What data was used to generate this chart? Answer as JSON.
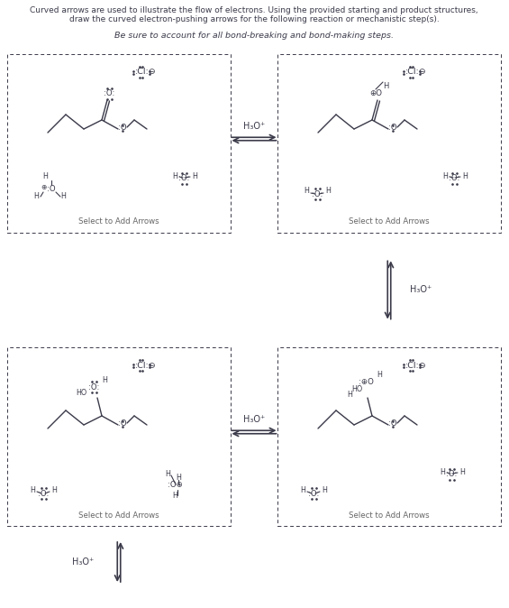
{
  "title_line1": "Curved arrows are used to illustrate the flow of electrons. Using the provided starting and product structures,",
  "title_line2": "draw the curved electron-pushing arrows for the following reaction or mechanistic step(s).",
  "subtitle": "Be sure to account for all bond-breaking and bond-making steps.",
  "bg_color": "#ffffff",
  "text_color": "#3a3a4a",
  "select_text": "Select to Add Arrows",
  "h3o_label": "H₃O⁺",
  "font_size_title": 6.5,
  "font_size_subtitle": 6.8,
  "font_size_mol": 6.0,
  "font_size_select": 6.2,
  "font_size_arrow_label": 7.0
}
